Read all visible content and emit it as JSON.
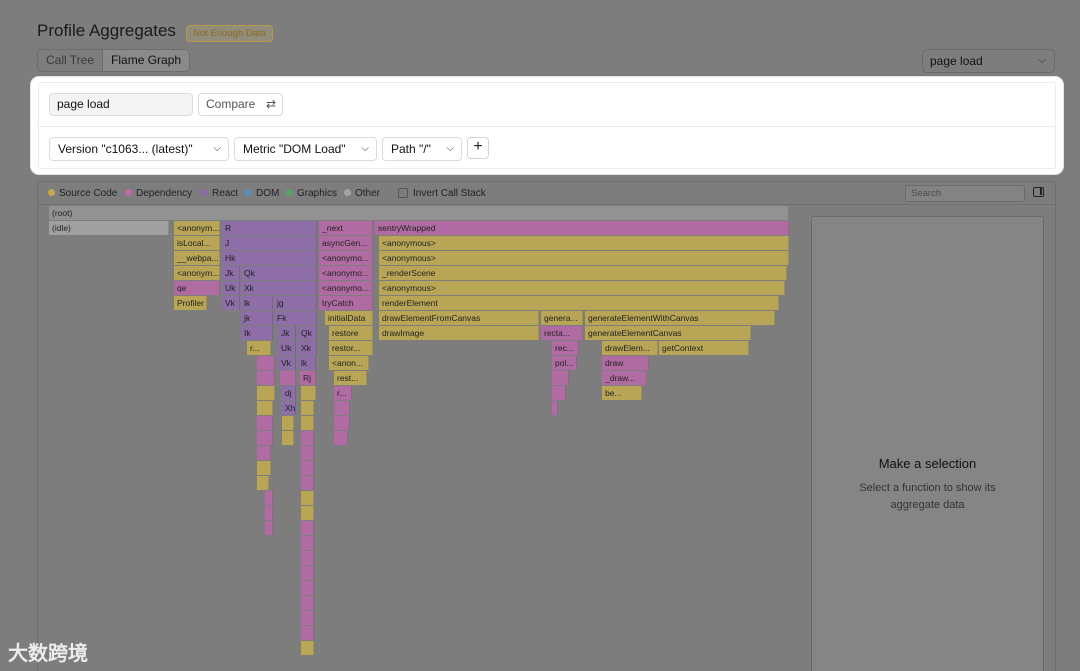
{
  "page": {
    "title": "Profile Aggregates",
    "badge": "Not Enough Data"
  },
  "view_toggle": {
    "tabs": [
      {
        "label": "Call Tree"
      },
      {
        "label": "Flame Graph"
      }
    ],
    "active": "Flame Graph"
  },
  "preset": {
    "value": "page load"
  },
  "query": {
    "value": "page load",
    "compare_label": "Compare"
  },
  "filters": {
    "version": "Version \"c1063...  (latest)\"",
    "metric": "Metric \"DOM Load\"",
    "path": "Path \"/\"",
    "add": "+"
  },
  "legend": [
    {
      "label": "Source Code",
      "color": "#c4a94b"
    },
    {
      "label": "Dependency",
      "color": "#c06aa8"
    },
    {
      "label": "React",
      "color": "#8b6aa8"
    },
    {
      "label": "DOM",
      "color": "#5b8fc0"
    },
    {
      "label": "Graphics",
      "color": "#5aa35f"
    },
    {
      "label": "Other",
      "color": "#a3a3a3"
    }
  ],
  "invert_label": "Invert Call Stack",
  "search": {
    "placeholder": "Search"
  },
  "detail": {
    "title": "Make a selection",
    "subtitle": "Select a function to show its aggregate data"
  },
  "flame_labels": [
    "(root)",
    "(idle)",
    "<anonym...",
    "isLocal...",
    "__webpa...",
    "<anonym...",
    "qe",
    "Profiler",
    "R",
    "J",
    "Hk",
    "Jk",
    "Qk",
    "Uk",
    "Xk",
    "Vk",
    "lk",
    "jg",
    "jk",
    "Fk",
    "Ik",
    "Jk",
    "Qk",
    "_next",
    "asyncGen...",
    "<anonymo...",
    "<anonymo...",
    "<anonymo...",
    "tryCatch",
    "initialData",
    "sentryWrapped",
    "<anonymous>",
    "<anonymous>",
    "_renderScene",
    "<anonymous>",
    "renderElement",
    "restore",
    "restor...",
    "<anon...",
    "rest...",
    "drawElementFromCanvas",
    "drawImage",
    "genera...",
    "generateElementWithCanvas",
    "recta...",
    "generateElementCanvas",
    "rec...",
    "drawElem...",
    "getContext",
    "pol...",
    "draw",
    "_draw...",
    "be...",
    "r...",
    "Uk",
    "Xk",
    "Vk",
    "lk",
    "Rj",
    "dj",
    "Xh",
    "r..."
  ],
  "watermark": "大数跨境"
}
